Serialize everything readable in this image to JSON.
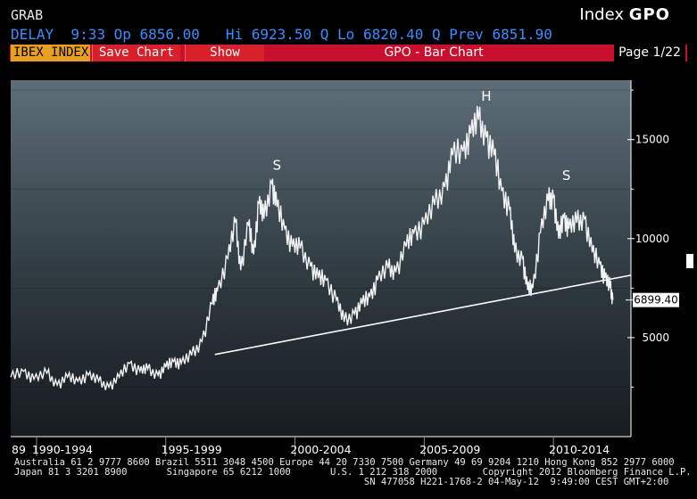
{
  "header": {
    "app_code": "GRAB",
    "index_label": "Index",
    "function_code": "GPO",
    "quote_line": "DELAY  9:33 Op 6856.00   Hi 6923.50 Q Lo 6820.40 Q Prev 6851.90"
  },
  "toolbar": {
    "security_tab": "IBEX INDEX",
    "save_label": "Save Chart",
    "show_label": "Show",
    "title": "GPO - Bar Chart",
    "page": "Page 1/22"
  },
  "footer": {
    "line1": "Australia 61 2 9777 8600 Brazil 5511 3048 4500 Europe 44 20 7330 7500 Germany 49 69 9204 1210 Hong Kong 852 2977 6000",
    "line2": "Japan 81 3 3201 8900       Singapore 65 6212 1000       U.S. 1 212 318 2000        Copyright 2012 Bloomberg Finance L.P.",
    "line3": "                                                              SN 477058 H221-1768-2 04-May-12  9:49:00 CEST GMT+2:00"
  },
  "colors": {
    "accent_red": "#c8102e",
    "tab_orange": "#e8a020",
    "quote_blue": "#3b8cff"
  },
  "chart_data": {
    "type": "line",
    "title": "",
    "xlabel": "",
    "ylabel": "",
    "y_ticks": [
      5000,
      10000,
      15000
    ],
    "y_tick_labels": [
      "5000",
      "10000",
      "15000"
    ],
    "ylim": [
      0,
      18000
    ],
    "xlim": [
      1989.0,
      2013.0
    ],
    "x_tick_labels": [
      "89",
      "1990-1994",
      "1995-1999",
      "2000-2004",
      "2005-2009",
      "2010-2014"
    ],
    "x_tick_positions": [
      1989.0,
      1991.0,
      1996.0,
      2001.0,
      2006.0,
      2011.0
    ],
    "grid": false,
    "last_value": 6899.4,
    "last_value_label": "6899.40",
    "annotations": [
      {
        "text": "S",
        "x": 1999.3,
        "y": 13200
      },
      {
        "text": "H",
        "x": 2007.4,
        "y": 16700
      },
      {
        "text": "S",
        "x": 2010.5,
        "y": 12700
      }
    ],
    "trendline": {
      "x": [
        1996.9,
        2013.0
      ],
      "y": [
        4150,
        8150
      ]
    },
    "series": [
      {
        "x": [
          1989.0,
          1989.5,
          1989.9,
          1990.4,
          1990.8,
          1991.2,
          1991.6,
          1992.0,
          1992.4,
          1992.8,
          1993.2,
          1993.6,
          1994.0,
          1994.3,
          1994.7,
          1995.0,
          1995.3,
          1995.6,
          1996.0,
          1996.4,
          1996.8,
          1997.0,
          1997.4,
          1997.7,
          1997.9,
          1998.2,
          1998.4,
          1998.6,
          1998.8,
          1999.1,
          1999.3,
          1999.6,
          1999.9,
          2000.2,
          2000.6,
          2000.9,
          2001.2,
          2001.6,
          2001.9,
          2002.3,
          2002.6,
          2002.9,
          2003.2,
          2003.6,
          2003.9,
          2004.3,
          2004.6,
          2005.0,
          2005.4,
          2005.8,
          2006.1,
          2006.5,
          2006.8,
          2007.1,
          2007.4,
          2007.7,
          2008.0,
          2008.3,
          2008.5,
          2008.8,
          2009.0,
          2009.2,
          2009.5,
          2009.8,
          2010.0,
          2010.2,
          2010.4,
          2010.6,
          2010.9,
          2011.2,
          2011.5,
          2011.8,
          2012.0,
          2012.2,
          2012.3
        ],
        "y": [
          3000,
          3300,
          2900,
          3200,
          2600,
          3000,
          2800,
          3100,
          2800,
          2500,
          3000,
          3700,
          3300,
          3400,
          3100,
          3500,
          3800,
          3700,
          4100,
          4800,
          6700,
          7400,
          9000,
          10800,
          8400,
          10700,
          9200,
          11800,
          11000,
          12800,
          11600,
          10500,
          9600,
          9500,
          8600,
          8000,
          7900,
          6900,
          5800,
          6200,
          6700,
          7100,
          7900,
          8500,
          8300,
          9600,
          10300,
          10700,
          11700,
          12600,
          14200,
          14400,
          15300,
          16000,
          15100,
          14200,
          12400,
          11500,
          9300,
          9000,
          7400,
          7500,
          10300,
          11900,
          12100,
          10000,
          11100,
          10500,
          10800,
          11000,
          9300,
          8700,
          8000,
          7500,
          6899.4
        ]
      }
    ]
  }
}
